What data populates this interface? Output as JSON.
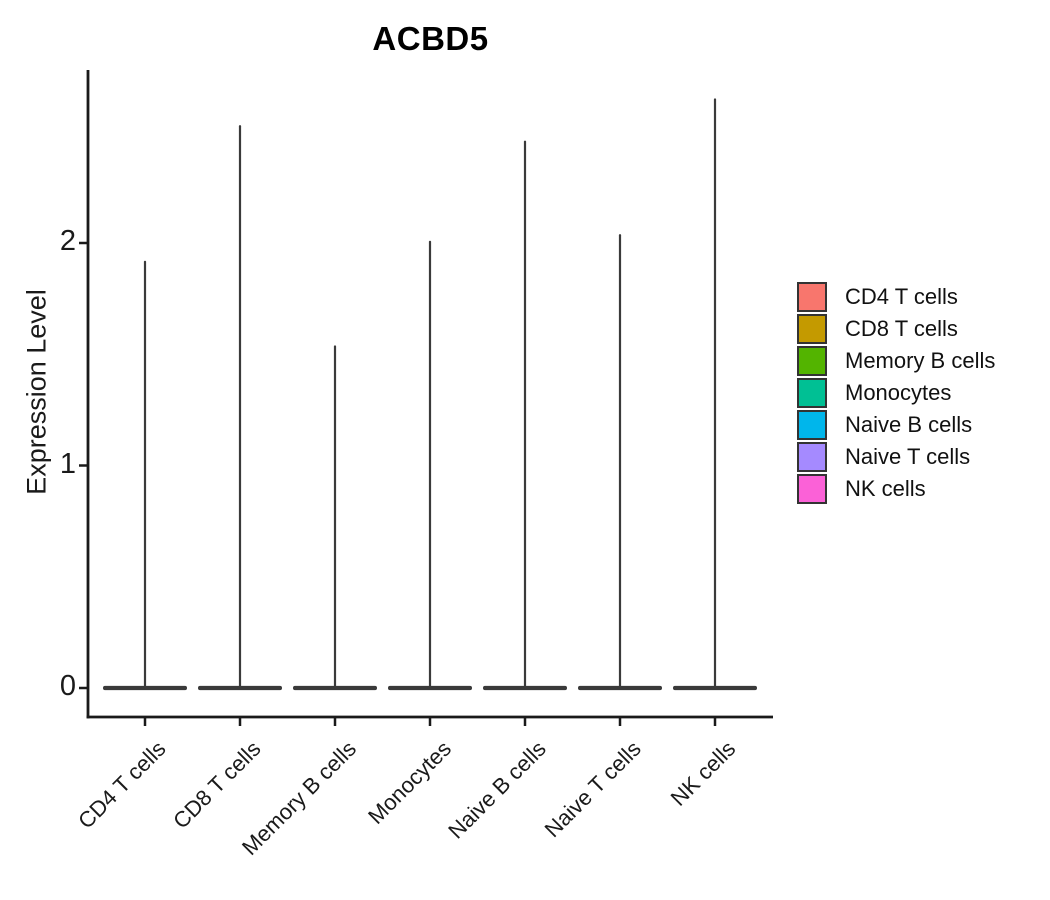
{
  "chart_data": {
    "type": "violin",
    "title": "ACBD5",
    "ylabel": "Expression Level",
    "xlabel": "",
    "categories": [
      "CD4 T cells",
      "CD8 T cells",
      "Memory B cells",
      "Monocytes",
      "Naive B cells",
      "Naive T cells",
      "NK cells"
    ],
    "series": [
      {
        "name": "CD4 T cells",
        "color": "#F8766D",
        "baseline_value": 0,
        "max_expression": 1.92
      },
      {
        "name": "CD8 T cells",
        "color": "#C49A00",
        "baseline_value": 0,
        "max_expression": 2.53
      },
      {
        "name": "Memory B cells",
        "color": "#53B400",
        "baseline_value": 0,
        "max_expression": 1.54
      },
      {
        "name": "Monocytes",
        "color": "#00C094",
        "baseline_value": 0,
        "max_expression": 2.01
      },
      {
        "name": "Naive B cells",
        "color": "#00B6EB",
        "baseline_value": 0,
        "max_expression": 2.46
      },
      {
        "name": "Naive T cells",
        "color": "#A58AFF",
        "baseline_value": 0,
        "max_expression": 2.04
      },
      {
        "name": "NK cells",
        "color": "#FB61D7",
        "baseline_value": 0,
        "max_expression": 2.65
      }
    ],
    "y_ticks": [
      0,
      1,
      2
    ],
    "ylim": [
      0,
      2.78
    ],
    "grid": false,
    "legend_position": "right",
    "violin_outline_color": "#3A3A3A",
    "axis_color": "#1a1a1a"
  }
}
